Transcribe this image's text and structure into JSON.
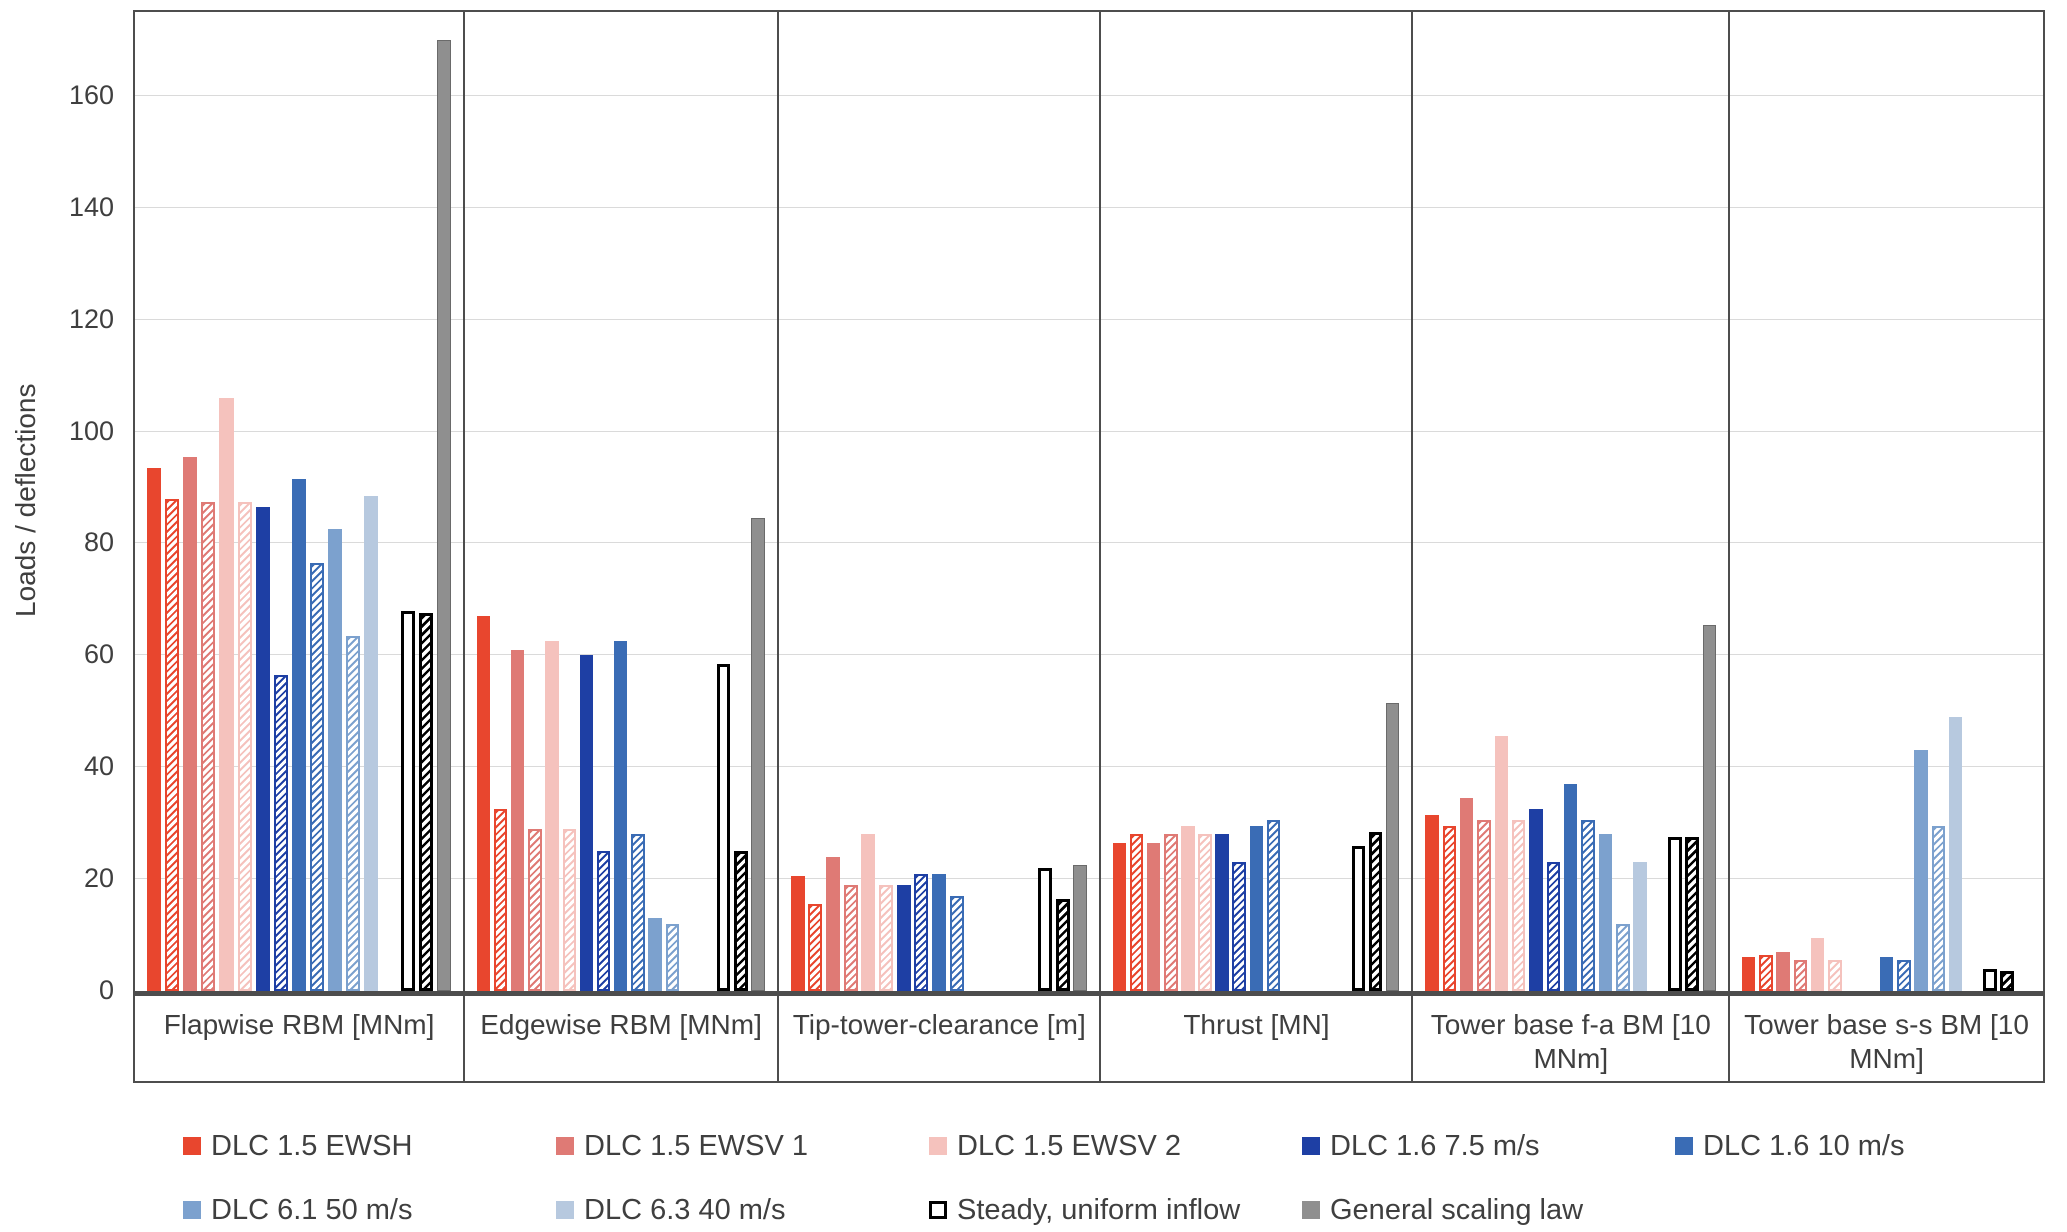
{
  "chart_data": {
    "type": "bar",
    "title": "",
    "ylabel": "Loads / deflections",
    "xlabel": "",
    "ylim": [
      0,
      175
    ],
    "yticks": [
      0,
      20,
      40,
      60,
      80,
      100,
      120,
      140,
      160
    ],
    "grid": true,
    "legend_position": "bottom",
    "bar_variants": [
      "solid",
      "hatched"
    ],
    "categories": [
      "Flapwise RBM [MNm]",
      "Edgewise RBM [MNm]",
      "Tip-tower-clearance [m]",
      "Thrust [MN]",
      "Tower base f-a BM [10 MNm]",
      "Tower base s-s BM [10 MNm]"
    ],
    "series": [
      {
        "name": "DLC 1.5 EWSH",
        "kind": "dlc",
        "color": "#e8462e",
        "solid": [
          93.5,
          67,
          20.5,
          26.5,
          31.5,
          6
        ],
        "hatched": [
          88,
          32.5,
          15.5,
          28,
          29.5,
          6.5
        ]
      },
      {
        "name": "DLC 1.5 EWSV 1",
        "kind": "dlc",
        "color": "#df7a75",
        "solid": [
          95.5,
          61,
          24,
          26.5,
          34.5,
          7
        ],
        "hatched": [
          87.5,
          29,
          19,
          28,
          30.5,
          5.5
        ]
      },
      {
        "name": "DLC 1.5 EWSV 2",
        "kind": "dlc",
        "color": "#f5c2bd",
        "solid": [
          106,
          62.5,
          28,
          29.5,
          45.5,
          9.5
        ],
        "hatched": [
          87.5,
          29,
          19,
          28,
          30.5,
          5.5
        ]
      },
      {
        "name": "DLC 1.6 7.5 m/s",
        "kind": "dlc",
        "color": "#1e3fa4",
        "solid": [
          86.5,
          60,
          19,
          28,
          32.5,
          null
        ],
        "hatched": [
          56.5,
          25,
          21,
          23,
          23,
          null
        ]
      },
      {
        "name": "DLC 1.6 10 m/s",
        "kind": "dlc",
        "color": "#3a6cb5",
        "solid": [
          91.5,
          62.5,
          21,
          29.5,
          37,
          6
        ],
        "hatched": [
          76.5,
          28,
          17,
          30.5,
          30.5,
          5.5
        ]
      },
      {
        "name": "DLC 6.1 50 m/s",
        "kind": "dlc",
        "color": "#7ca1ce",
        "solid": [
          82.5,
          13,
          null,
          null,
          28,
          43
        ],
        "hatched": [
          63.5,
          12,
          null,
          null,
          12,
          29.5
        ]
      },
      {
        "name": "DLC 6.3 40 m/s",
        "kind": "dlc",
        "color": "#b7c9df",
        "solid": [
          88.5,
          null,
          null,
          null,
          23,
          49
        ],
        "hatched": [
          null,
          null,
          null,
          null,
          null,
          null
        ]
      },
      {
        "name": "Steady, uniform inflow",
        "kind": "steady",
        "color": "#000000",
        "solid": [
          68,
          58.5,
          22,
          26,
          27.5,
          4
        ],
        "hatched": [
          67.5,
          25,
          16.5,
          28.5,
          27.5,
          3.5
        ]
      },
      {
        "name": "General scaling law",
        "kind": "scaling",
        "color": "#8f8f8f",
        "solid": [
          170,
          84.5,
          22.5,
          51.5,
          65.5,
          null
        ],
        "hatched": null
      }
    ],
    "legend_rows": [
      [
        0,
        1,
        2,
        3,
        4
      ],
      [
        5,
        6,
        7,
        8
      ]
    ],
    "colors": {
      "axis": "#4d4d4d",
      "gridline": "#dadada",
      "text": "#3f3f3f",
      "steady_outline": "#000000",
      "scaling_fill": "#8f8f8f"
    }
  }
}
